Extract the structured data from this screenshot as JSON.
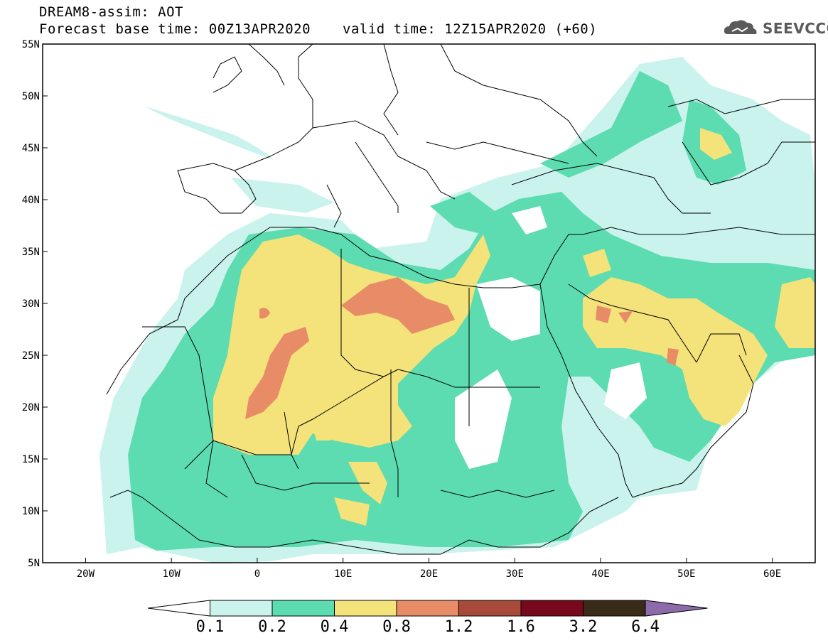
{
  "header": {
    "title_line1": "DREAM8-assim: AOT",
    "title_line2": "Forecast base time: 00Z13APR2020",
    "valid_time": "valid time: 12Z15APR2020 (+60)",
    "logo_text": "SEEVCCC"
  },
  "map": {
    "lat_range": [
      5,
      55
    ],
    "lon_range": [
      -25,
      65
    ],
    "lat_ticks": [
      "55N",
      "50N",
      "45N",
      "40N",
      "35N",
      "30N",
      "25N",
      "20N",
      "15N",
      "10N",
      "5N"
    ],
    "lon_ticks": [
      "20W",
      "10W",
      "0",
      "10E",
      "20E",
      "30E",
      "40E",
      "50E",
      "60E"
    ]
  },
  "colorbar": {
    "levels": [
      "0.1",
      "0.2",
      "0.4",
      "0.8",
      "1.2",
      "1.6",
      "3.2",
      "6.4"
    ],
    "colors": [
      "#ffffff",
      "#c9f3ec",
      "#5cdcb0",
      "#f4e27a",
      "#e88c68",
      "#a84a3a",
      "#78081e",
      "#3a2a18",
      "#8d6aaa"
    ]
  }
}
